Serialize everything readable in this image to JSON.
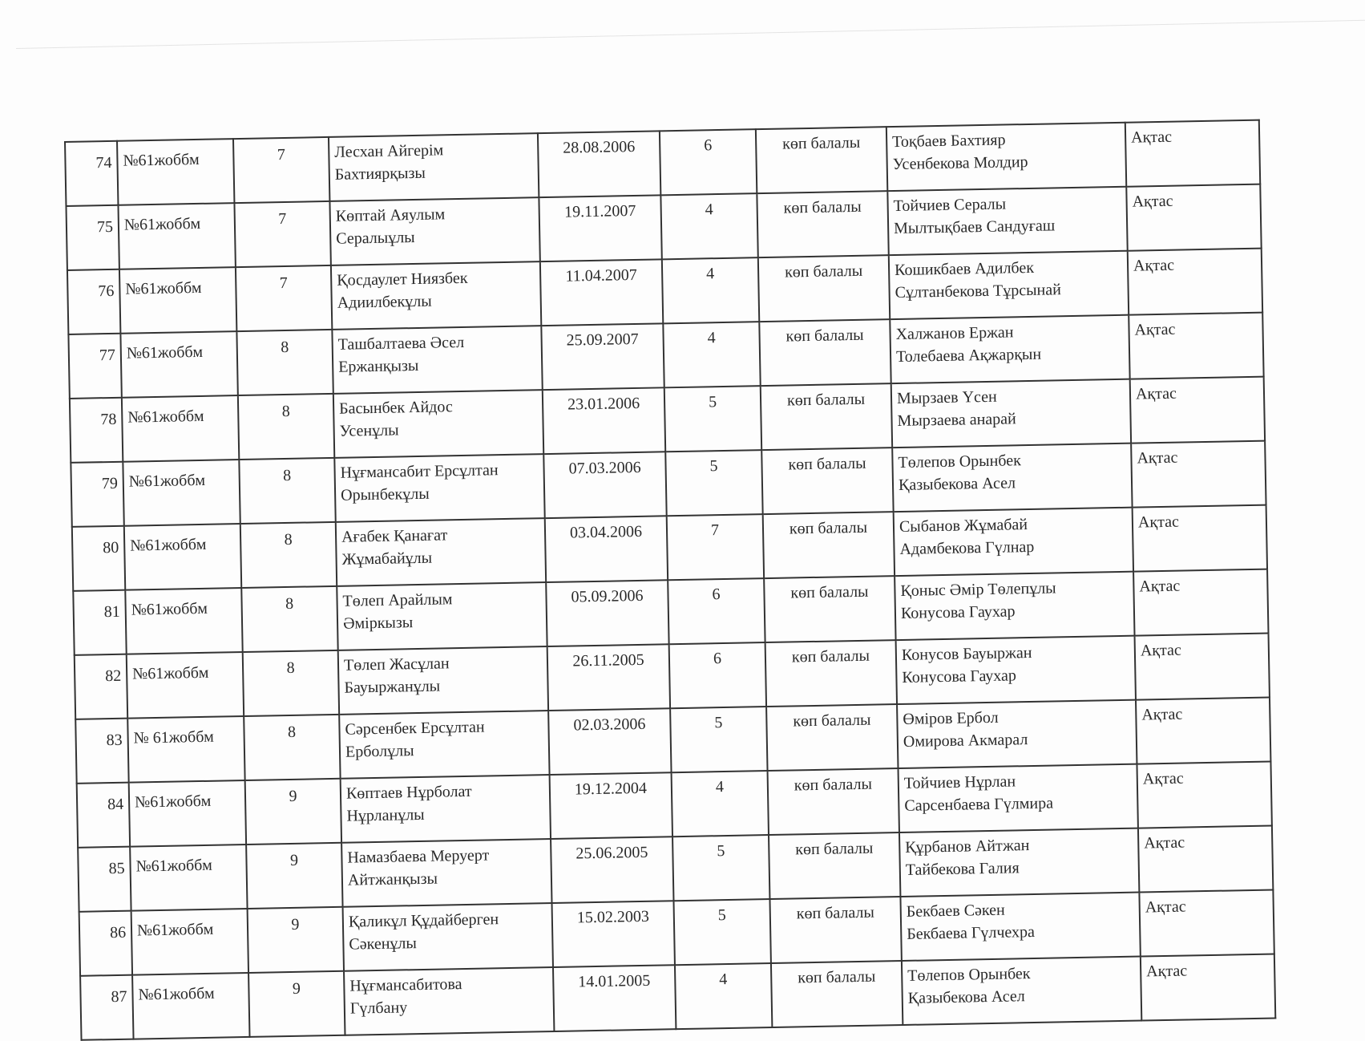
{
  "rows": [
    {
      "no": "74",
      "school": "№61жоббм",
      "grade": "7",
      "student": [
        "Лесхан  Айгерім",
        "Бахтиярқызы"
      ],
      "birth": "28.08.2006",
      "children": "6",
      "status": "көп балалы",
      "parents": [
        "Тоқбаев  Бахтияр",
        "Усенбекова  Молдир"
      ],
      "place": "Ақтас"
    },
    {
      "no": "75",
      "school": "№61жоббм",
      "grade": "7",
      "student": [
        "Көптай  Аяулым",
        "Сералыұлы"
      ],
      "birth": "19.11.2007",
      "children": "4",
      "status": "көп балалы",
      "parents": [
        "Тойчиев Сералы",
        "Мылтықбаев  Сандуғаш"
      ],
      "place": "Ақтас"
    },
    {
      "no": "76",
      "school": "№61жоббм",
      "grade": "7",
      "student": [
        "Қосдаулет  Ниязбек",
        "Адиилбекұлы"
      ],
      "birth": "11.04.2007",
      "children": "4",
      "status": "көп балалы",
      "parents": [
        "Кошикбаев  Адилбек",
        "Сұлтанбекова  Тұрсынай"
      ],
      "place": "Ақтас"
    },
    {
      "no": "77",
      "school": "№61жоббм",
      "grade": "8",
      "student": [
        "Ташбалтаева  Әсел",
        "Ержанқызы"
      ],
      "birth": "25.09.2007",
      "children": "4",
      "status": "көп балалы",
      "parents": [
        "Халжанов  Ержан",
        "Толебаева  Ақжарқын"
      ],
      "place": "Ақтас"
    },
    {
      "no": "78",
      "school": "№61жоббм",
      "grade": "8",
      "student": [
        "Басынбек  Айдос",
        "Усенұлы"
      ],
      "birth": "23.01.2006",
      "children": "5",
      "status": "көп балалы",
      "parents": [
        "Мырзаев Үсен",
        "Мырзаева  анарай"
      ],
      "place": "Ақтас"
    },
    {
      "no": "79",
      "school": "№61жоббм",
      "grade": "8",
      "student": [
        "Нұғмансабит  Ерсұлтан",
        "Орынбекұлы"
      ],
      "birth": "07.03.2006",
      "children": "5",
      "status": "көп балалы",
      "parents": [
        "Төлепов  Орынбек",
        "Қазыбекова  Асел"
      ],
      "place": "Ақтас"
    },
    {
      "no": "80",
      "school": "№61жоббм",
      "grade": "8",
      "student": [
        "Ағабек Қанағат",
        "Жұмабайұлы"
      ],
      "birth": "03.04.2006",
      "children": "7",
      "status": "көп балалы",
      "parents": [
        "Сыбанов  Жұмабай",
        "Адамбекова  Гүлнар"
      ],
      "place": "Ақтас"
    },
    {
      "no": "81",
      "school": "№61жоббм",
      "grade": "8",
      "student": [
        "Төлеп  Арайлым",
        "Әміркызы"
      ],
      "birth": "05.09.2006",
      "children": "6",
      "status": "көп балалы",
      "parents": [
        "Қоныс  Әмір Төлепұлы",
        "Конусова  Гаухар"
      ],
      "place": "Ақтас"
    },
    {
      "no": "82",
      "school": "№61жоббм",
      "grade": "8",
      "student": [
        "Төлеп  Жасұлан",
        "Бауыржанұлы"
      ],
      "birth": "26.11.2005",
      "children": "6",
      "status": "көп балалы",
      "parents": [
        "Конусов  Бауыржан",
        "Конусова  Гаухар"
      ],
      "place": "Ақтас"
    },
    {
      "no": "83",
      "school": "№ 61жоббм",
      "grade": "8",
      "student": [
        "Сәрсенбек  Ерсұлтан",
        "Ерболұлы"
      ],
      "birth": "02.03.2006",
      "children": "5",
      "status": "көп балалы",
      "parents": [
        "Өміров  Ербол",
        "Омирова  Акмарал"
      ],
      "place": "Ақтас"
    },
    {
      "no": "84",
      "school": "№61жоббм",
      "grade": "9",
      "student": [
        "Көптаев  Нұрболат",
        "Нұрланұлы"
      ],
      "birth": "19.12.2004",
      "children": "4",
      "status": "көп балалы",
      "parents": [
        "Тойчиев Нұрлан",
        "Сарсенбаева  Гүлмира"
      ],
      "place": "Ақтас"
    },
    {
      "no": "85",
      "school": "№61жоббм",
      "grade": "9",
      "student": [
        "Намазбаева Меруерт",
        "Айтжанқызы"
      ],
      "birth": "25.06.2005",
      "children": "5",
      "status": "көп балалы",
      "parents": [
        "Құрбанов Айтжан",
        "Тайбекова  Галия"
      ],
      "place": "Ақтас"
    },
    {
      "no": "86",
      "school": "№61жоббм",
      "grade": "9",
      "student": [
        "Қаликұл Құдайберген",
        "Сәкенұлы"
      ],
      "birth": "15.02.2003",
      "children": "5",
      "status": "көп балалы",
      "parents": [
        "Бекбаев Сәкен",
        "Бекбаева  Гүлчехра"
      ],
      "place": "Ақтас"
    },
    {
      "no": "87",
      "school": "№61жоббм",
      "grade": "9",
      "student": [
        "Нұғмансабитова",
        "Гүлбану"
      ],
      "birth": "14.01.2005",
      "children": "4",
      "status": "көп балалы",
      "parents": [
        "Төлепов  Орынбек",
        "Қазыбекова  Асел"
      ],
      "place": "Ақтас"
    }
  ]
}
